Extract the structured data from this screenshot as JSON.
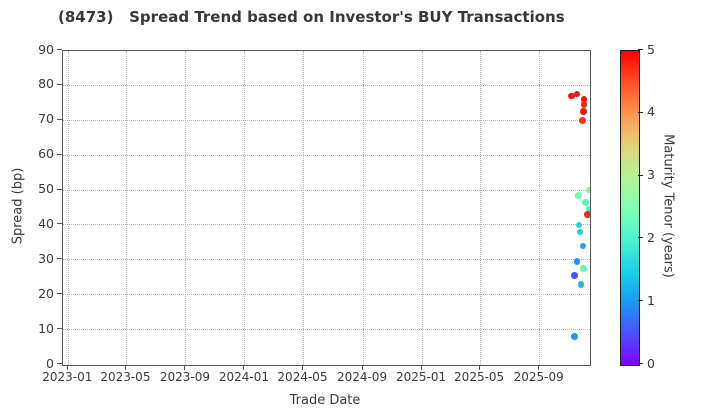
{
  "header": {
    "title": "(8473)   Spread Trend based on Investor's BUY Transactions"
  },
  "chart_data": {
    "type": "scatter",
    "title": "(8473)   Spread Trend based on Investor's BUY Transactions",
    "xlabel": "Trade Date",
    "ylabel": "Spread (bp)",
    "ylim": [
      0,
      90
    ],
    "y_ticks": [
      0,
      10,
      20,
      30,
      40,
      50,
      60,
      70,
      80,
      90
    ],
    "x_tick_labels": [
      "2023-01",
      "2023-05",
      "2023-09",
      "2024-01",
      "2024-05",
      "2024-09",
      "2025-01",
      "2025-05",
      "2025-09"
    ],
    "x_range": [
      "2022-12-21",
      "2025-12-13"
    ],
    "grid": "dotted",
    "legend_position": "none",
    "colorbar": {
      "label": "Maturity Tenor (years)",
      "range": [
        0,
        5
      ],
      "ticks": [
        0,
        1,
        2,
        3,
        4,
        5
      ],
      "colormap": "rainbow",
      "stops": [
        {
          "value": 0,
          "color": "#8000ff"
        },
        {
          "value": 0.5,
          "color": "#4d50fc"
        },
        {
          "value": 1,
          "color": "#199af3"
        },
        {
          "value": 1.5,
          "color": "#1ad3e5"
        },
        {
          "value": 2,
          "color": "#4df3ce"
        },
        {
          "value": 2.5,
          "color": "#80ffb3"
        },
        {
          "value": 3,
          "color": "#b3f396"
        },
        {
          "value": 3.5,
          "color": "#e6cf7a"
        },
        {
          "value": 4,
          "color": "#ff964f"
        },
        {
          "value": 4.5,
          "color": "#ff4f28"
        },
        {
          "value": 5,
          "color": "#ff0000"
        }
      ]
    },
    "points": [
      {
        "date": "2025-11-06",
        "spread": 77,
        "maturity": 5.0,
        "color": "#f2170b"
      },
      {
        "date": "2025-11-17",
        "spread": 77.5,
        "maturity": 5.0,
        "color": "#f2170b"
      },
      {
        "date": "2025-12-02",
        "spread": 76,
        "maturity": 5.0,
        "color": "#f2170b"
      },
      {
        "date": "2025-12-02",
        "spread": 74.5,
        "maturity": 4.9,
        "color": "#f32a10"
      },
      {
        "date": "2025-12-01",
        "spread": 72.5,
        "maturity": 5.0,
        "color": "#f2170b"
      },
      {
        "date": "2025-11-29",
        "spread": 70,
        "maturity": 4.8,
        "color": "#f43517"
      },
      {
        "date": "2025-12-12",
        "spread": 50,
        "maturity": 2.6,
        "color": "#79f5a6"
      },
      {
        "date": "2025-11-20",
        "spread": 48.5,
        "maturity": 2.6,
        "color": "#79f5a6"
      },
      {
        "date": "2025-12-05",
        "spread": 46.5,
        "maturity": 2.4,
        "color": "#63f2b4"
      },
      {
        "date": "2025-12-12",
        "spread": 44.5,
        "maturity": 2.2,
        "color": "#45f0c6"
      },
      {
        "date": "2025-12-09",
        "spread": 43,
        "maturity": 4.9,
        "color": "#f32a10"
      },
      {
        "date": "2025-11-21",
        "spread": 40,
        "maturity": 1.6,
        "color": "#25d5e2"
      },
      {
        "date": "2025-11-23",
        "spread": 38,
        "maturity": 1.5,
        "color": "#21cde8"
      },
      {
        "date": "2025-11-30",
        "spread": 34,
        "maturity": 1.1,
        "color": "#1fa0f1"
      },
      {
        "date": "2025-11-17",
        "spread": 29.5,
        "maturity": 1.0,
        "color": "#1b97f3"
      },
      {
        "date": "2025-12-01",
        "spread": 27.5,
        "maturity": 2.5,
        "color": "#6ff4ad"
      },
      {
        "date": "2025-11-12",
        "spread": 25.5,
        "maturity": 0.5,
        "color": "#4c50fb"
      },
      {
        "date": "2025-11-25",
        "spread": 23,
        "maturity": 1.3,
        "color": "#27b7ec"
      },
      {
        "date": "2025-11-12",
        "spread": 8,
        "maturity": 1.0,
        "color": "#1b97f3"
      }
    ]
  }
}
